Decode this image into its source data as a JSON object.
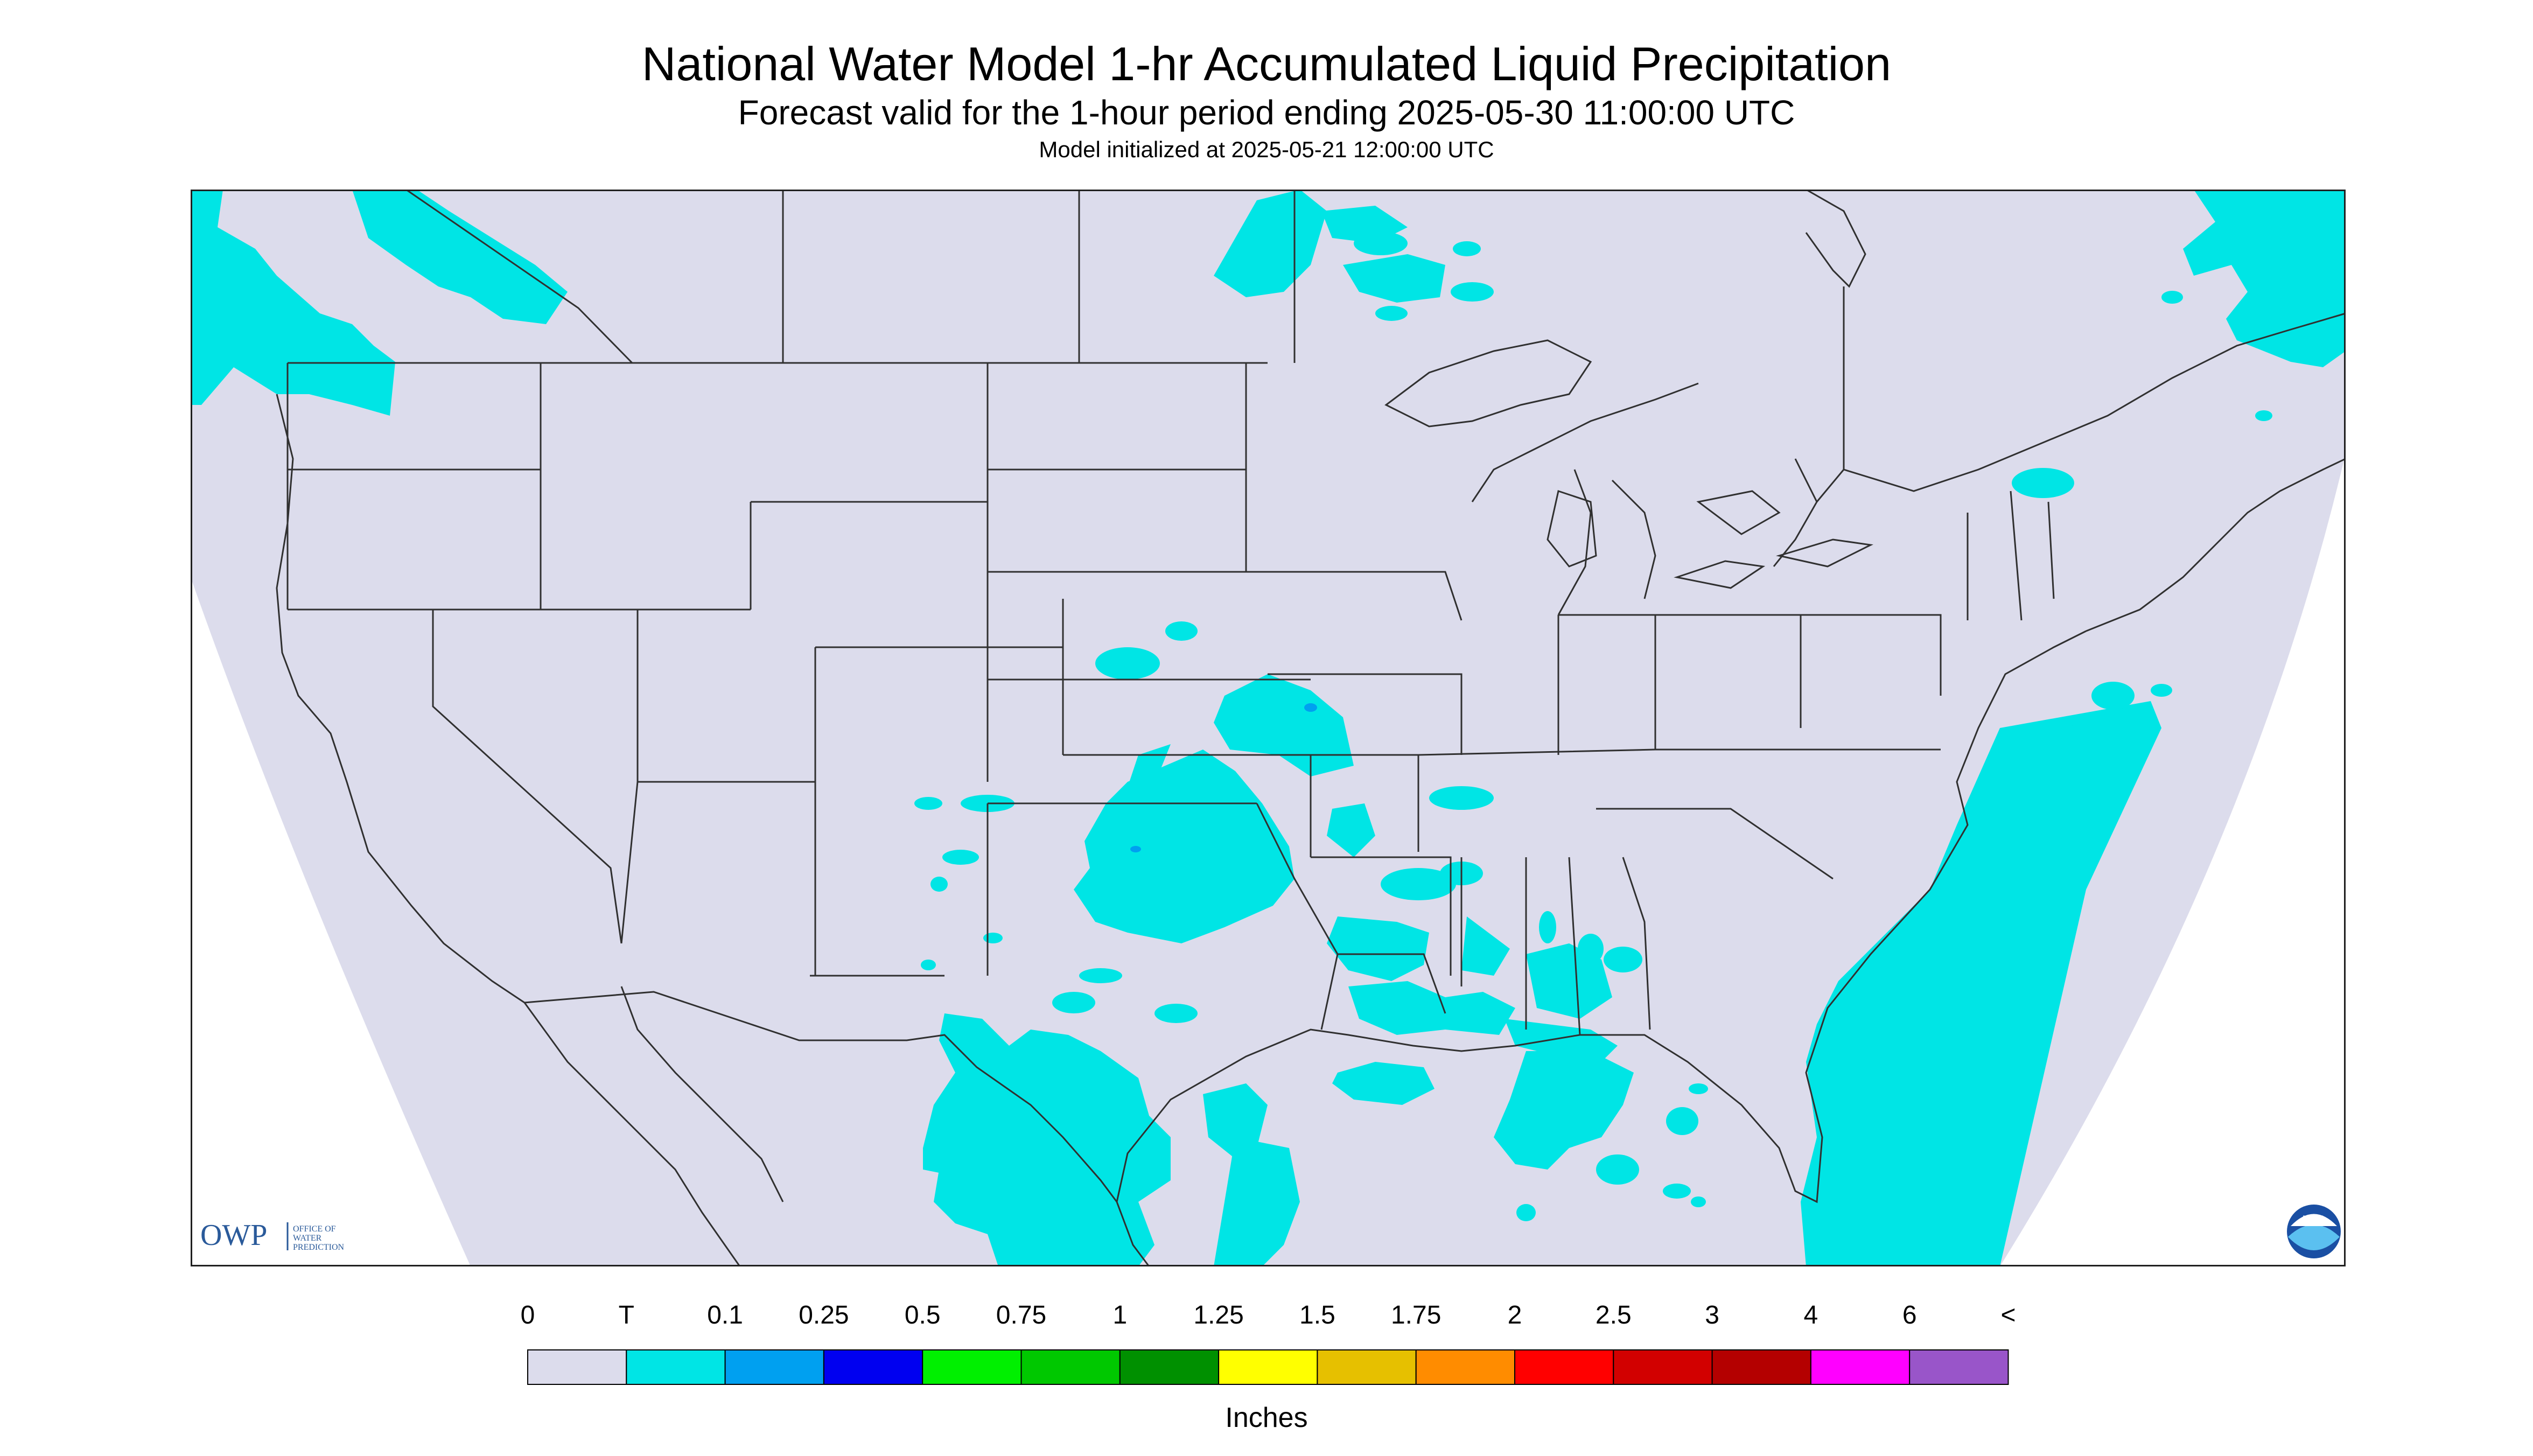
{
  "title": "National Water Model 1-hr Accumulated Liquid Precipitation",
  "subtitle": "Forecast valid for the 1-hour period ending 2025-05-30 11:00:00 UTC",
  "init_line": "Model initialized at 2025-05-21 12:00:00 UTC",
  "colors": {
    "background_outside_domain": "#ffffff",
    "domain_fill": "#dcdcec",
    "trace_cyan": "#00e5e5",
    "light_blue_0_1": "#00a0f0",
    "border_lines": "#303030"
  },
  "legend": {
    "unit_label": "Inches",
    "tick_labels": [
      "0",
      "T",
      "0.1",
      "0.25",
      "0.5",
      "0.75",
      "1",
      "1.25",
      "1.5",
      "1.75",
      "2",
      "2.5",
      "3",
      "4",
      "6",
      "<"
    ],
    "colors": [
      "#dcdcec",
      "#00e5e5",
      "#00a0f0",
      "#0000f0",
      "#00f000",
      "#00c800",
      "#009000",
      "#ffff00",
      "#e6c000",
      "#ff8c00",
      "#ff0000",
      "#d20000",
      "#b40000",
      "#ff00ff",
      "#9955c9"
    ]
  },
  "logos": {
    "owp_mark": "OWP",
    "owp_text": [
      "OFFICE OF",
      "WATER",
      "PREDICTION"
    ],
    "noaa_mark": "NOAA"
  }
}
